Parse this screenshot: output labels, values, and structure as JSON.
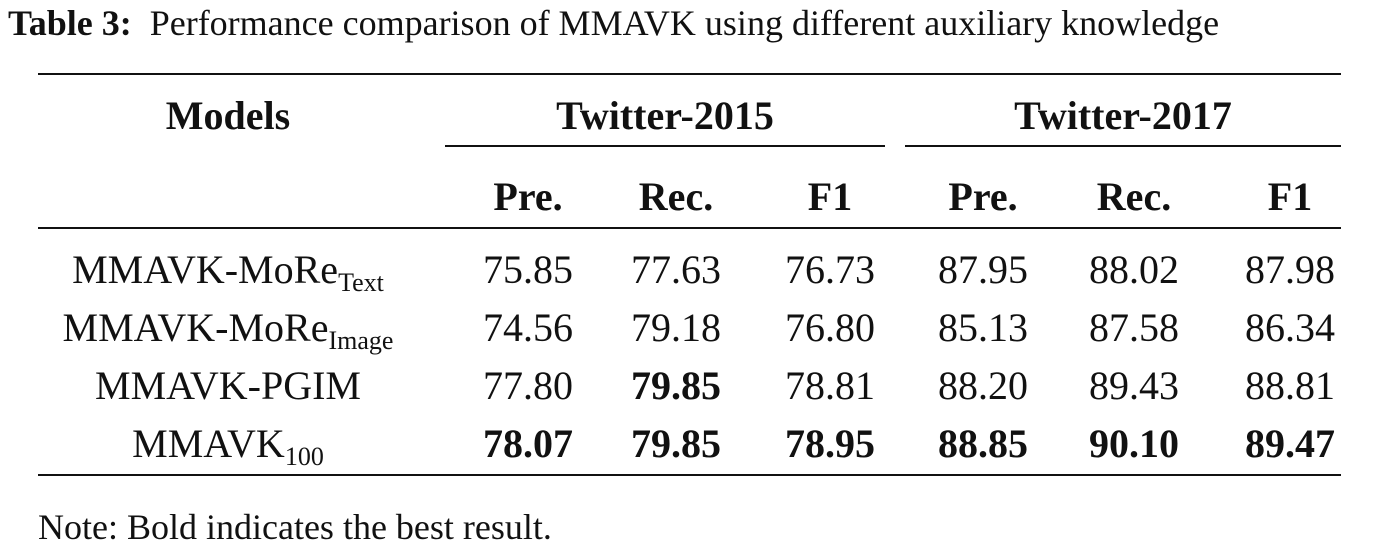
{
  "caption": {
    "label": "Table 3:",
    "text": "Performance comparison of MMAVK using different auxiliary knowledge"
  },
  "header": {
    "models": "Models",
    "group1": "Twitter-2015",
    "group2": "Twitter-2017",
    "cols": [
      "Pre.",
      "Rec.",
      "F1",
      "Pre.",
      "Rec.",
      "F1"
    ]
  },
  "rows": [
    {
      "model": "MMAVK-MoRe",
      "sub": "Text",
      "values": [
        "75.85",
        "77.63",
        "76.73",
        "87.95",
        "88.02",
        "87.98"
      ],
      "bold": [
        false,
        false,
        false,
        false,
        false,
        false
      ]
    },
    {
      "model": "MMAVK-MoRe",
      "sub": "Image",
      "values": [
        "74.56",
        "79.18",
        "76.80",
        "85.13",
        "87.58",
        "86.34"
      ],
      "bold": [
        false,
        false,
        false,
        false,
        false,
        false
      ]
    },
    {
      "model": "MMAVK-PGIM",
      "sub": "",
      "values": [
        "77.80",
        "79.85",
        "78.81",
        "88.20",
        "89.43",
        "88.81"
      ],
      "bold": [
        false,
        true,
        false,
        false,
        false,
        false
      ]
    },
    {
      "model": "MMAVK",
      "sub": "100",
      "values": [
        "78.07",
        "79.85",
        "78.95",
        "88.85",
        "90.10",
        "89.47"
      ],
      "bold": [
        true,
        true,
        true,
        true,
        true,
        true
      ]
    }
  ],
  "note": "Note: Bold indicates the best result."
}
